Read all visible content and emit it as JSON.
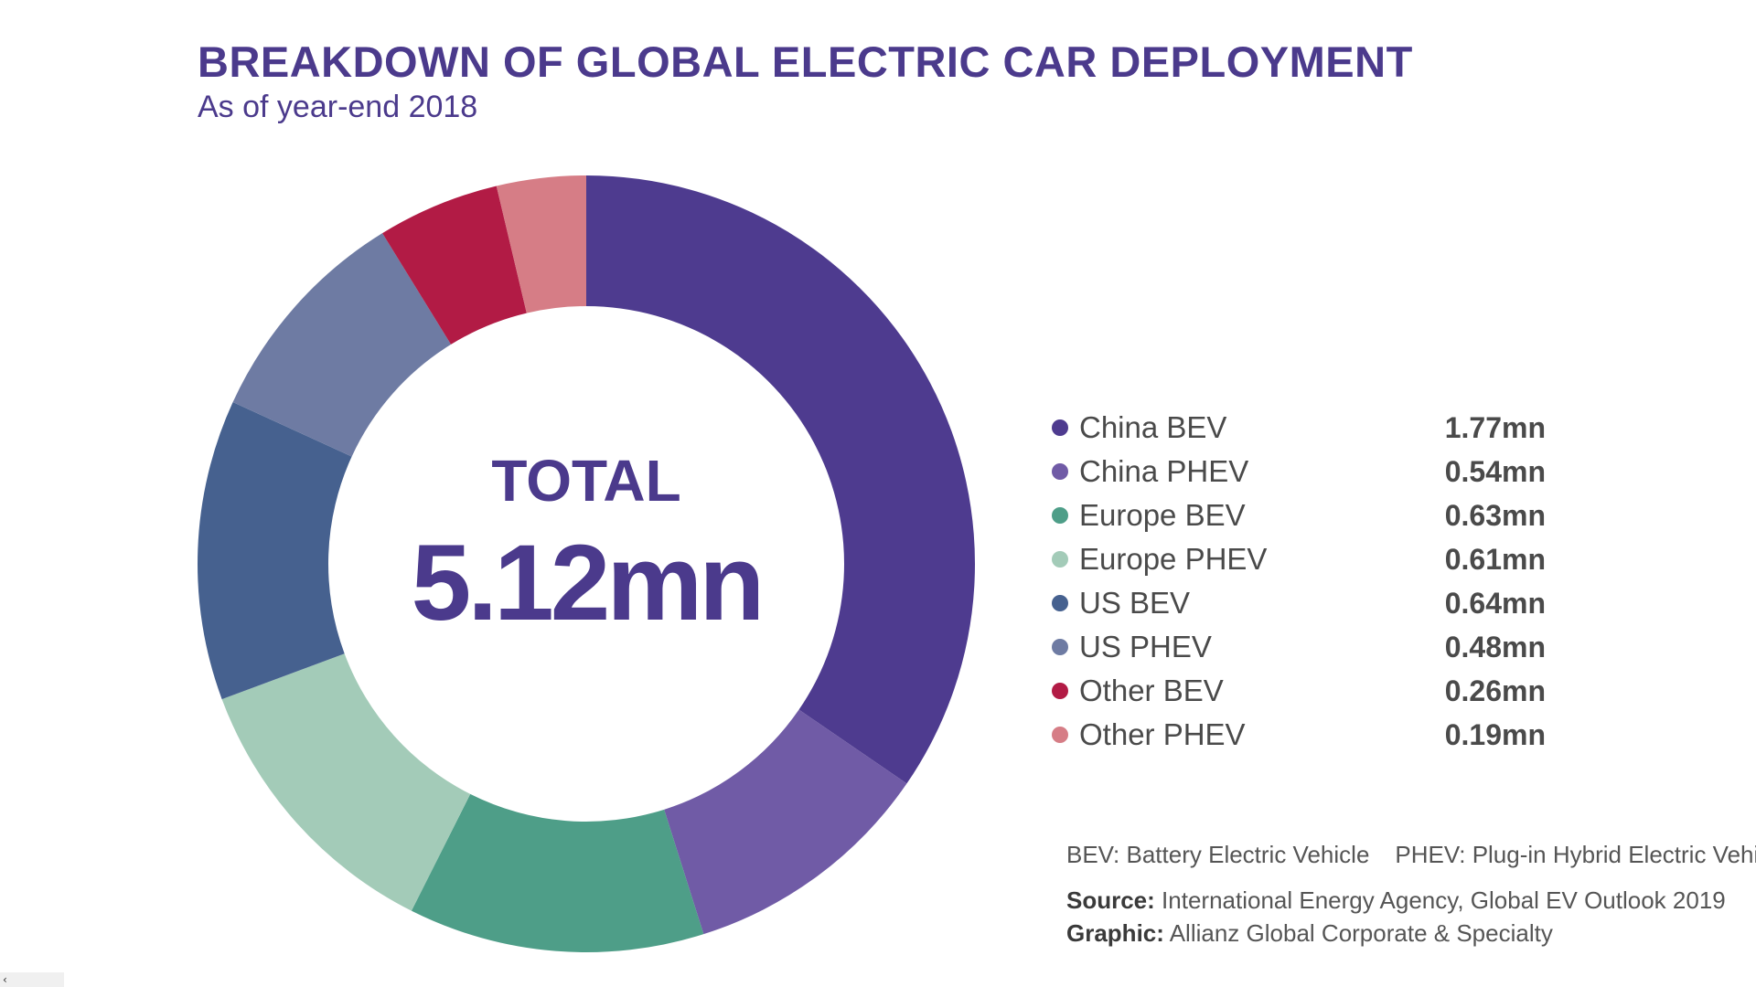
{
  "chart_data": {
    "type": "pie",
    "donut": true,
    "title": "BREAKDOWN OF GLOBAL ELECTRIC CAR DEPLOYMENT",
    "subtitle": "As of year-end 2018",
    "center_label": "TOTAL",
    "center_value": "5.12mn",
    "unit": "mn",
    "slices": [
      {
        "name": "China BEV",
        "value": 1.77,
        "display": "1.77mn",
        "color": "#4e3b8f"
      },
      {
        "name": "China PHEV",
        "value": 0.54,
        "display": "0.54mn",
        "color": "#705ba6"
      },
      {
        "name": "Europe BEV",
        "value": 0.63,
        "display": "0.63mn",
        "color": "#4e9e88"
      },
      {
        "name": "Europe PHEV",
        "value": 0.61,
        "display": "0.61mn",
        "color": "#a3cbb8"
      },
      {
        "name": "US BEV",
        "value": 0.64,
        "display": "0.64mn",
        "color": "#46618f"
      },
      {
        "name": "US PHEV",
        "value": 0.48,
        "display": "0.48mn",
        "color": "#6e7ba3"
      },
      {
        "name": "Other BEV",
        "value": 0.26,
        "display": "0.26mn",
        "color": "#b21b45"
      },
      {
        "name": "Other PHEV",
        "value": 0.19,
        "display": "0.19mn",
        "color": "#d67d86"
      }
    ],
    "legend_position": "right"
  },
  "notes": {
    "bev": "BEV: Battery Electric Vehicle",
    "phev": "PHEV: Plug-in Hybrid Electric Vehicle",
    "source_label": "Source:",
    "source_text": "International Energy Agency, Global EV Outlook 2019",
    "graphic_label": "Graphic:",
    "graphic_text": "Allianz Global Corporate & Specialty"
  },
  "ui": {
    "scroll_glyph": "‹"
  }
}
